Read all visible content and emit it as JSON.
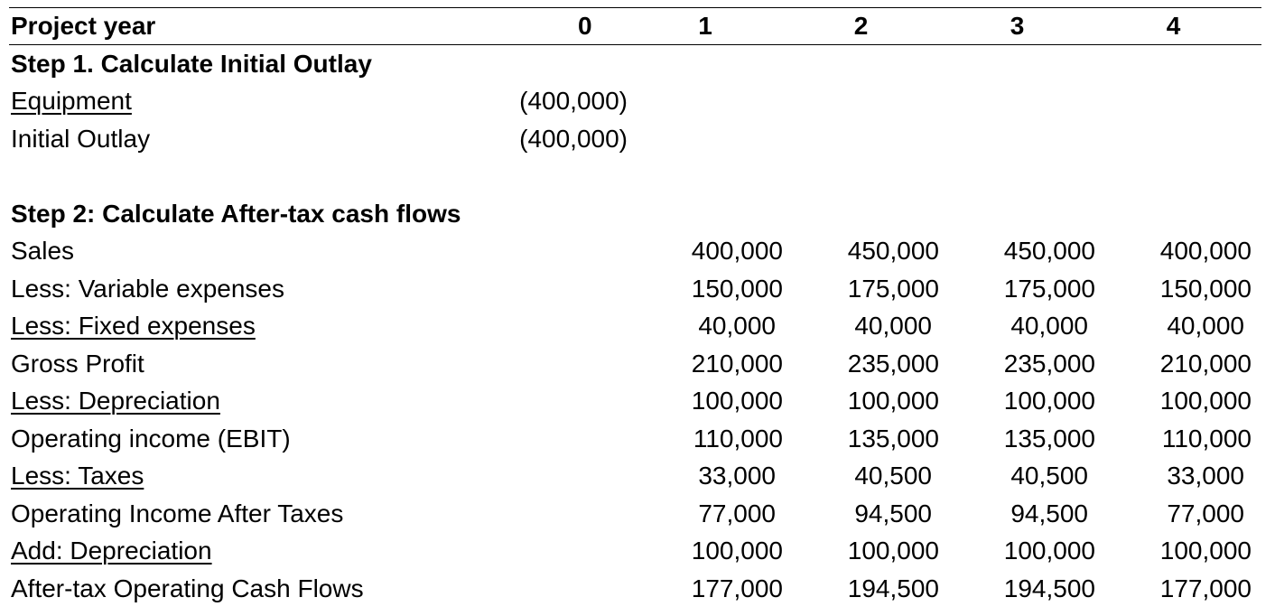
{
  "header": {
    "label": "Project year",
    "years": [
      "0",
      "1",
      "2",
      "3",
      "4"
    ]
  },
  "step1": {
    "title": "Step 1. Calculate Initial Outlay",
    "rows": [
      {
        "label": "Equipment",
        "year0": "(400,000)"
      },
      {
        "label": "Initial Outlay",
        "year0": "(400,000)"
      }
    ]
  },
  "step2": {
    "title": "Step 2: Calculate After-tax cash flows",
    "rows": [
      {
        "label": "Sales",
        "values": [
          "400,000",
          "450,000",
          "450,000",
          "400,000"
        ]
      },
      {
        "label": "Less: Variable expenses",
        "values": [
          "150,000",
          "175,000",
          "175,000",
          "150,000"
        ]
      },
      {
        "label": "Less: Fixed expenses",
        "values": [
          "40,000",
          "40,000",
          "40,000",
          "40,000"
        ]
      },
      {
        "label": "Gross Profit",
        "values": [
          "210,000",
          "235,000",
          "235,000",
          "210,000"
        ]
      },
      {
        "label": "Less: Depreciation",
        "values": [
          "100,000",
          "100,000",
          "100,000",
          "100,000"
        ]
      },
      {
        "label": "Operating income (EBIT)",
        "values": [
          "110,000",
          "135,000",
          "135,000",
          "110,000"
        ]
      },
      {
        "label": "Less: Taxes",
        "values": [
          "33,000",
          "40,500",
          "40,500",
          "33,000"
        ]
      },
      {
        "label": "Operating Income After Taxes",
        "values": [
          "77,000",
          "94,500",
          "94,500",
          "77,000"
        ]
      },
      {
        "label": "Add: Depreciation",
        "values": [
          "100,000",
          "100,000",
          "100,000",
          "100,000"
        ]
      },
      {
        "label": "After-tax Operating Cash Flows",
        "values": [
          "177,000",
          "194,500",
          "194,500",
          "177,000"
        ]
      }
    ]
  }
}
